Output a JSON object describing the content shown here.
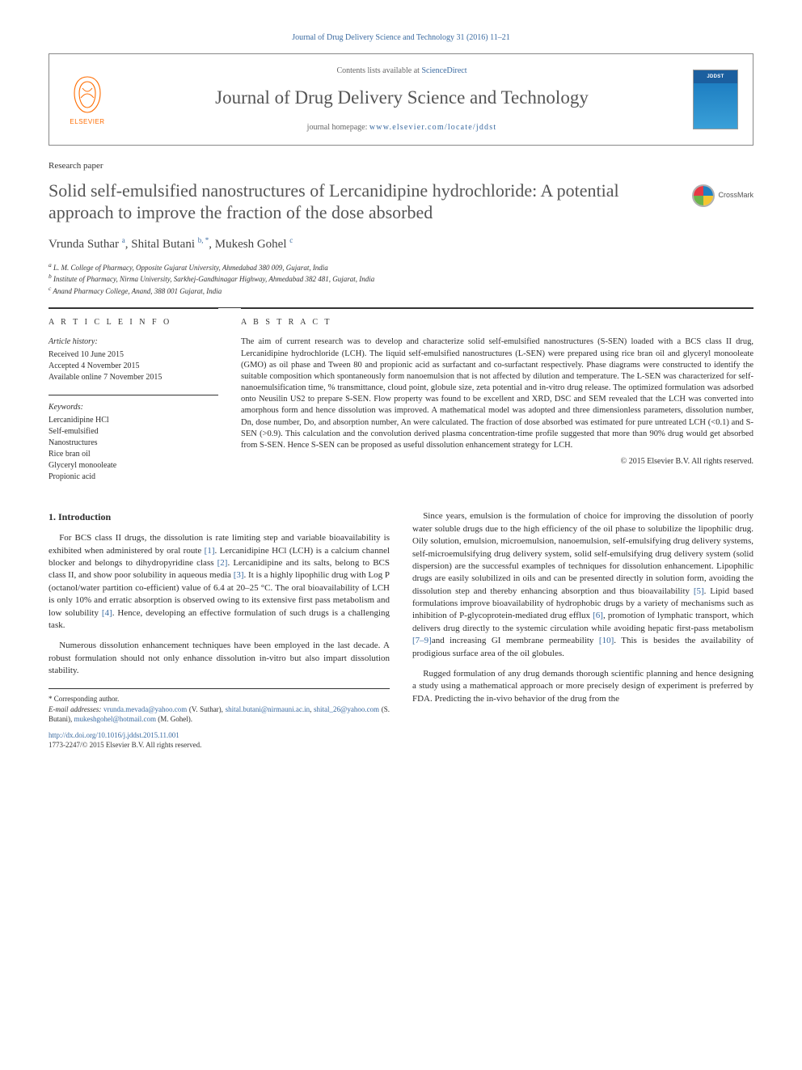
{
  "journal_ref": "Journal of Drug Delivery Science and Technology 31 (2016) 11–21",
  "masthead": {
    "contents_prefix": "Contents lists available at ",
    "contents_link": "ScienceDirect",
    "journal_title": "Journal of Drug Delivery Science and Technology",
    "homepage_prefix": "journal homepage: ",
    "homepage_url": "www.elsevier.com/locate/jddst",
    "elsevier_label": "ELSEVIER",
    "cover_label": "JDDST"
  },
  "article_type": "Research paper",
  "title": "Solid self-emulsified nanostructures of Lercanidipine hydrochloride: A potential approach to improve the fraction of the dose absorbed",
  "crossmark_label": "CrossMark",
  "authors_html": "Vrunda Suthar <sup class='sup'>a</sup>, Shital Butani <sup class='sup'>b, *</sup>, Mukesh Gohel <sup class='sup'>c</sup>",
  "affiliations": [
    "a L. M. College of Pharmacy, Opposite Gujarat University, Ahmedabad 380 009, Gujarat, India",
    "b Institute of Pharmacy, Nirma University, Sarkhej-Gandhinagar Highway, Ahmedabad 382 481, Gujarat, India",
    "c Anand Pharmacy College, Anand, 388 001 Gujarat, India"
  ],
  "article_info_heading": "A R T I C L E   I N F O",
  "history_label": "Article history:",
  "history": [
    "Received 10 June 2015",
    "Accepted 4 November 2015",
    "Available online 7 November 2015"
  ],
  "keywords_label": "Keywords:",
  "keywords": [
    "Lercanidipine HCl",
    "Self-emulsified",
    "Nanostructures",
    "Rice bran oil",
    "Glyceryl monooleate",
    "Propionic acid"
  ],
  "abstract_heading": "A B S T R A C T",
  "abstract": "The aim of current research was to develop and characterize solid self-emulsified nanostructures (S-SEN) loaded with a BCS class II drug, Lercanidipine hydrochloride (LCH). The liquid self-emulsified nanostructures (L-SEN) were prepared using rice bran oil and glyceryl monooleate (GMO) as oil phase and Tween 80 and propionic acid as surfactant and co-surfactant respectively. Phase diagrams were constructed to identify the suitable composition which spontaneously form nanoemulsion that is not affected by dilution and temperature. The L-SEN was characterized for self-nanoemulsification time, % transmittance, cloud point, globule size, zeta potential and in-vitro drug release. The optimized formulation was adsorbed onto Neusilin US2 to prepare S-SEN. Flow property was found to be excellent and XRD, DSC and SEM revealed that the LCH was converted into amorphous form and hence dissolution was improved. A mathematical model was adopted and three dimensionless parameters, dissolution number, Dn, dose number, Do, and absorption number, An were calculated. The fraction of dose absorbed was estimated for pure untreated LCH (<0.1) and S-SEN (>0.9). This calculation and the convolution derived plasma concentration-time profile suggested that more than 90% drug would get absorbed from S-SEN. Hence S-SEN can be proposed as useful dissolution enhancement strategy for LCH.",
  "copyright": "© 2015 Elsevier B.V. All rights reserved.",
  "section_1_title": "1. Introduction",
  "col1": {
    "p1_pre": "For BCS class II drugs, the dissolution is rate limiting step and variable bioavailability is exhibited when administered by oral route ",
    "p1_ref1": "[1]",
    "p1_mid1": ". Lercanidipine HCl (LCH) is a calcium channel blocker and belongs to dihydropyridine class ",
    "p1_ref2": "[2]",
    "p1_mid2": ". Lercanidipine and its salts, belong to BCS class II, and show poor solubility in aqueous media ",
    "p1_ref3": "[3]",
    "p1_mid3": ". It is a highly lipophilic drug with Log P (octanol/water partition co-efficient) value of 6.4 at 20–25 °C. The oral bioavailability of LCH is only 10% and erratic absorption is observed owing to its extensive first pass metabolism and low solubility ",
    "p1_ref4": "[4]",
    "p1_post": ". Hence, developing an effective formulation of such drugs is a challenging task.",
    "p2": "Numerous dissolution enhancement techniques have been employed in the last decade. A robust formulation should not only enhance dissolution in-vitro but also impart dissolution stability."
  },
  "col2": {
    "p1_pre": "Since years, emulsion is the formulation of choice for improving the dissolution of poorly water soluble drugs due to the high efficiency of the oil phase to solubilize the lipophilic drug. Oily solution, emulsion, microemulsion, nanoemulsion, self-emulsifying drug delivery systems, self-microemulsifying drug delivery system, solid self-emulsifying drug delivery system (solid dispersion) are the successful examples of techniques for dissolution enhancement. Lipophilic drugs are easily solubilized in oils and can be presented directly in solution form, avoiding the dissolution step and thereby enhancing absorption and thus bioavailability ",
    "p1_ref5": "[5]",
    "p1_mid1": ". Lipid based formulations improve bioavailability of hydrophobic drugs by a variety of mechanisms such as inhibition of P-glycoprotein-mediated drug efflux ",
    "p1_ref6": "[6]",
    "p1_mid2": ", promotion of lymphatic transport, which delivers drug directly to the systemic circulation while avoiding hepatic first-pass metabolism ",
    "p1_ref7": "[7–9]",
    "p1_mid3": "and increasing GI membrane permeability ",
    "p1_ref10": "[10]",
    "p1_post": ". This is besides the availability of prodigious surface area of the oil globules.",
    "p2": "Rugged formulation of any drug demands thorough scientific planning and hence designing a study using a mathematical approach or more precisely design of experiment is preferred by FDA. Predicting the in-vivo behavior of the drug from the"
  },
  "footnotes": {
    "corr": "* Corresponding author.",
    "emails_label": "E-mail addresses:",
    "e1": "vrunda.mevada@yahoo.com",
    "e1_who": " (V. Suthar), ",
    "e2": "shital.butani@nirmauni.ac.in",
    "e2_sep": ", ",
    "e3": "shital_26@yahoo.com",
    "e3_who": " (S. Butani), ",
    "e4": "mukeshgohel@hotmail.com",
    "e4_who": " (M. Gohel)."
  },
  "doi": "http://dx.doi.org/10.1016/j.jddst.2015.11.001",
  "issn_line": "1773-2247/© 2015 Elsevier B.V. All rights reserved.",
  "colors": {
    "link": "#3a6aa0",
    "elsevier_orange": "#ff6c00",
    "text": "#2d2d2d",
    "muted": "#555555"
  }
}
